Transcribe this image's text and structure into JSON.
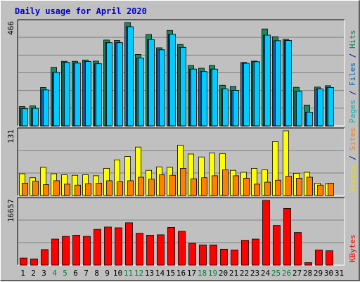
{
  "chart_data": {
    "title": "Daily usage for April 2020",
    "type": "bar",
    "categories": [
      "1",
      "2",
      "3",
      "4",
      "5",
      "6",
      "7",
      "8",
      "9",
      "10",
      "11",
      "12",
      "13",
      "14",
      "15",
      "16",
      "17",
      "18",
      "19",
      "20",
      "21",
      "22",
      "23",
      "24",
      "25",
      "26",
      "27",
      "28",
      "29",
      "30",
      "31"
    ],
    "weekend_days": [
      "4",
      "5",
      "11",
      "12",
      "18",
      "19",
      "25",
      "26"
    ],
    "panels": [
      {
        "id": "pages-files-hits",
        "max_label": "466",
        "ymax": 466,
        "legend": [
          {
            "text": "Pages",
            "color": "#00b0b0"
          },
          {
            "text": " / ",
            "color": "#000080"
          },
          {
            "text": "Files",
            "color": "#0060c0"
          },
          {
            "text": " / ",
            "color": "#000080"
          },
          {
            "text": "Hits",
            "color": "#008060"
          }
        ],
        "series": [
          {
            "name": "Hits",
            "color": "#1a8a5e",
            "values": [
              87,
              90,
              173,
              264,
              291,
              291,
              297,
              292,
              387,
              385,
              466,
              322,
              412,
              352,
              430,
              367,
              272,
              260,
              272,
              183,
              178,
              286,
              292,
              437,
              402,
              390,
              174,
              94,
              175,
              181,
              0
            ]
          },
          {
            "name": "Files",
            "color": "#1f5fc0",
            "values": [
              77,
              79,
              162,
              241,
              286,
              283,
              290,
              280,
              375,
              375,
              447,
              306,
              389,
              343,
              413,
              354,
              256,
              245,
              256,
              167,
              160,
              282,
              289,
              409,
              384,
              385,
              156,
              62,
              167,
              173,
              0
            ]
          },
          {
            "name": "Pages",
            "color": "#00ccff",
            "values": [
              77,
              79,
              162,
              241,
              286,
              283,
              290,
              280,
              375,
              375,
              447,
              306,
              389,
              343,
              413,
              354,
              256,
              245,
              256,
              167,
              160,
              282,
              289,
              409,
              384,
              385,
              156,
              62,
              167,
              173,
              0
            ]
          }
        ]
      },
      {
        "id": "visits-sites",
        "max_label": "131",
        "ymax": 131,
        "legend": [
          {
            "text": "Visits",
            "color": "#e8e000"
          },
          {
            "text": " / ",
            "color": "#000080"
          },
          {
            "text": "Sites",
            "color": "#ff8000"
          }
        ],
        "series": [
          {
            "name": "Visits",
            "color": "#ffff00",
            "values": [
              44,
              36,
              57,
              44,
              42,
              41,
              42,
              40,
              55,
              72,
              79,
              98,
              51,
              58,
              57,
              102,
              84,
              78,
              86,
              85,
              51,
              47,
              55,
              52,
              109,
              131,
              45,
              47,
              25,
              24,
              0
            ]
          },
          {
            "name": "Sites",
            "color": "#ff8000",
            "values": [
              25,
              29,
              22,
              30,
              23,
              21,
              24,
              25,
              30,
              28,
              30,
              37,
              33,
              42,
              41,
              55,
              34,
              36,
              40,
              52,
              40,
              35,
              23,
              27,
              31,
              39,
              35,
              37,
              21,
              25,
              0
            ]
          }
        ]
      },
      {
        "id": "kbytes",
        "max_label": "16657",
        "ymax": 16657,
        "legend": [
          {
            "text": "KBytes",
            "color": "#ff0000"
          }
        ],
        "series": [
          {
            "name": "KBytes",
            "color": "#ff0000",
            "values": [
              1800,
              1600,
              4000,
              6700,
              7400,
              7700,
              7400,
              9200,
              9800,
              9600,
              10900,
              8200,
              7700,
              7800,
              9700,
              8700,
              5600,
              5200,
              5200,
              4100,
              3900,
              6400,
              6700,
              16657,
              10200,
              14600,
              8400,
              650,
              3900,
              3700,
              0
            ]
          }
        ]
      }
    ]
  }
}
